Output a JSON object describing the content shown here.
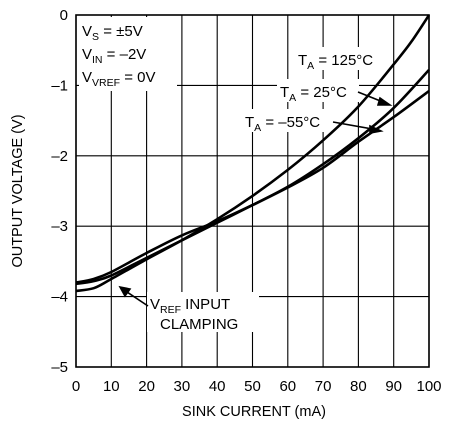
{
  "chart_data": {
    "type": "line",
    "xlabel": "SINK CURRENT (mA)",
    "ylabel": "OUTPUT VOLTAGE (V)",
    "xlim": [
      0,
      100
    ],
    "ylim": [
      -5,
      0
    ],
    "x_ticks": [
      "0",
      "10",
      "20",
      "30",
      "40",
      "50",
      "60",
      "70",
      "80",
      "90",
      "100"
    ],
    "y_ticks": [
      "0",
      "–1",
      "–2",
      "–3",
      "–4",
      "–5"
    ],
    "grid": true,
    "conditions": {
      "vs": {
        "main": "V",
        "sub": "S",
        "rest": " = ±5V"
      },
      "vin": {
        "main": "V",
        "sub": "IN",
        "rest": " = –2V"
      },
      "vvref": {
        "main": "V",
        "sub": "VREF",
        "rest": " = 0V"
      }
    },
    "series": [
      {
        "name": "T = 125°C",
        "label": {
          "main": "T",
          "sub": "A",
          "rest": " = 125°C"
        },
        "x": [
          0,
          5,
          10,
          20,
          30,
          40,
          50,
          60,
          70,
          80,
          90,
          95,
          100
        ],
        "y": [
          -3.92,
          -3.88,
          -3.75,
          -3.47,
          -3.2,
          -2.9,
          -2.57,
          -2.2,
          -1.78,
          -1.3,
          -0.7,
          -0.38,
          0
        ]
      },
      {
        "name": "T = 25°C",
        "label": {
          "main": "T",
          "sub": "A",
          "rest": " = 25°C"
        },
        "x": [
          0,
          5,
          10,
          20,
          30,
          40,
          50,
          60,
          70,
          80,
          90,
          100
        ],
        "y": [
          -3.82,
          -3.78,
          -3.7,
          -3.45,
          -3.2,
          -2.95,
          -2.7,
          -2.44,
          -2.12,
          -1.75,
          -1.32,
          -0.78
        ]
      },
      {
        "name": "T = –55°C",
        "label": {
          "main": "T",
          "sub": "A",
          "rest": " = –55°C"
        },
        "x": [
          0,
          5,
          10,
          20,
          30,
          40,
          50,
          60,
          70,
          80,
          90,
          100
        ],
        "y": [
          -3.8,
          -3.75,
          -3.65,
          -3.38,
          -3.13,
          -2.93,
          -2.7,
          -2.45,
          -2.17,
          -1.8,
          -1.45,
          -1.08
        ]
      }
    ],
    "annotations": {
      "vref_clamp": {
        "main": "V",
        "sub": "REF",
        "rest": " INPUT",
        "line2": "CLAMPING"
      }
    }
  }
}
